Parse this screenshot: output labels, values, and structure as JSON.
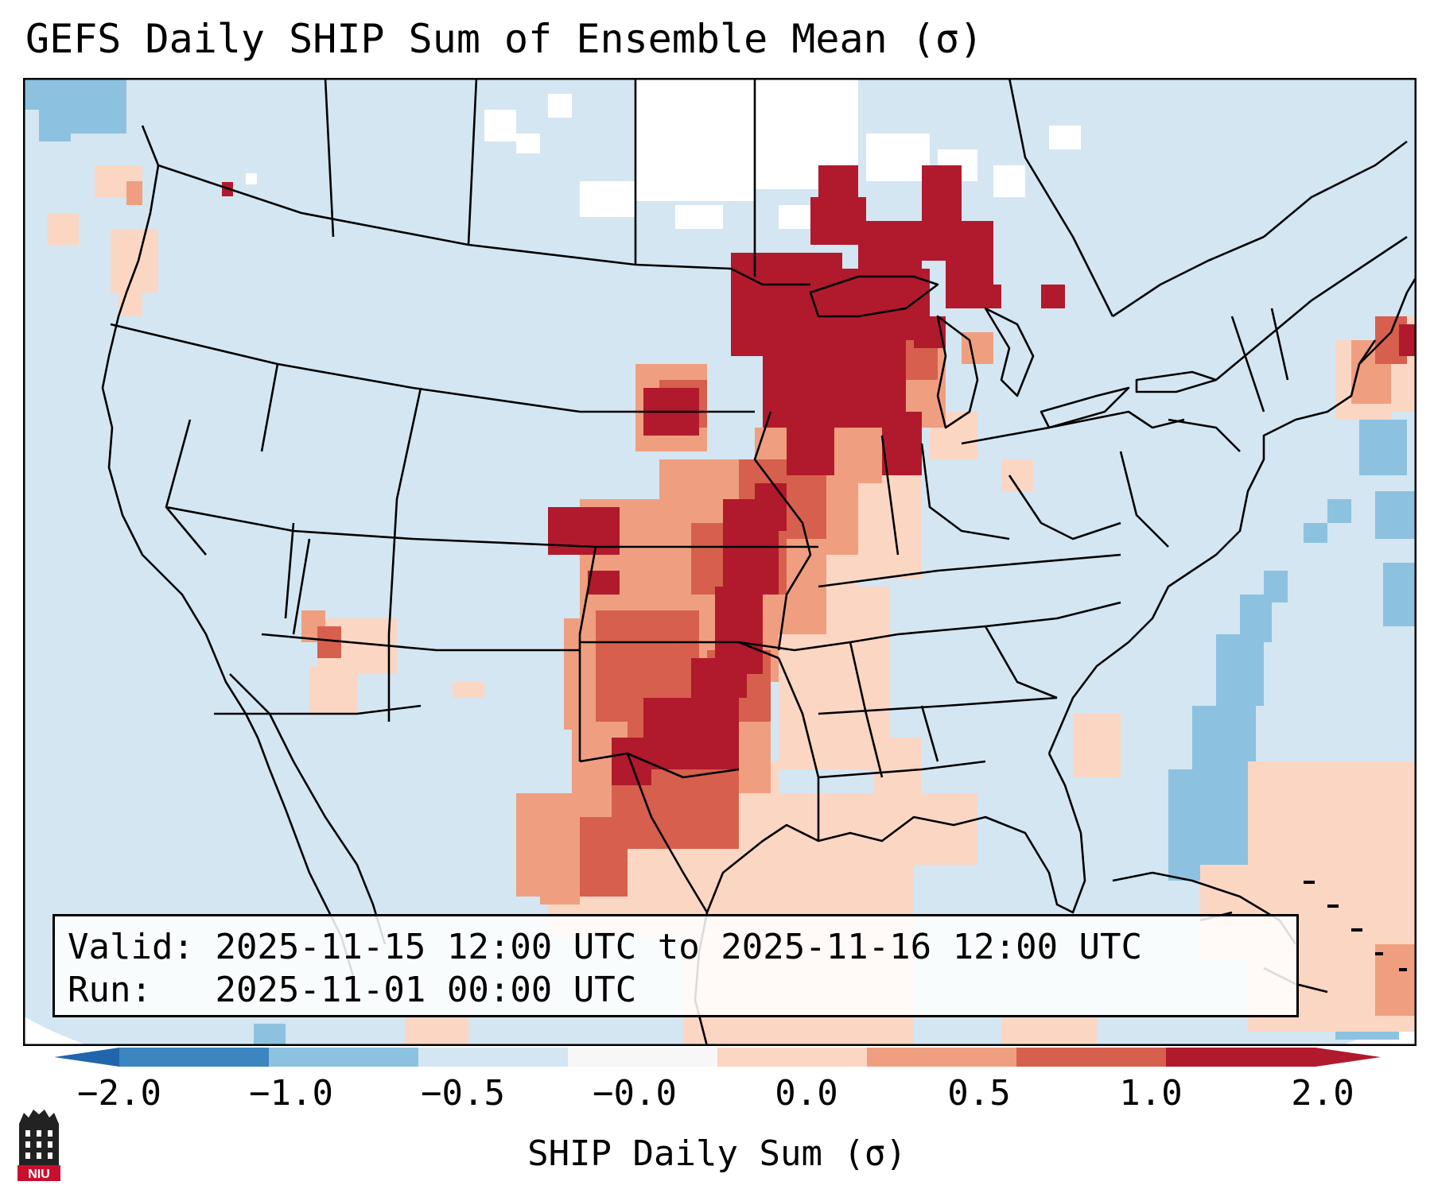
{
  "title": "GEFS Daily SHIP Sum of Ensemble Mean (σ)",
  "info": {
    "valid_label": "Valid:",
    "valid_value": "2025-11-15 12:00 UTC to 2025-11-16 12:00 UTC",
    "run_label": "Run:",
    "run_value": "2025-11-01 00:00 UTC"
  },
  "colorbar": {
    "label": "SHIP Daily Sum (σ)",
    "ticks": [
      "−2.0",
      "−1.0",
      "−0.5",
      "−0.0",
      "0.0",
      "0.5",
      "1.0",
      "2.0"
    ],
    "colors": [
      "#3b86c1",
      "#8cc2df",
      "#d4e6f2",
      "#f7f7f7",
      "#fbd6c3",
      "#ef9f80",
      "#d6604d",
      "#b11a2c"
    ]
  },
  "map_colors": {
    "background": "#d4e6f2",
    "outside": "#ffffff",
    "anom_pos_1": "#fbd6c3",
    "anom_pos_2": "#ef9f80",
    "anom_pos_3": "#d6604d",
    "anom_pos_4": "#b11a2c",
    "anom_neg_1": "#8cc2df",
    "anom_neg_2": "#3b86c1"
  },
  "logo": {
    "text": "NIU",
    "color": "#c8102e",
    "icon": "niu-tower-logo-icon"
  }
}
